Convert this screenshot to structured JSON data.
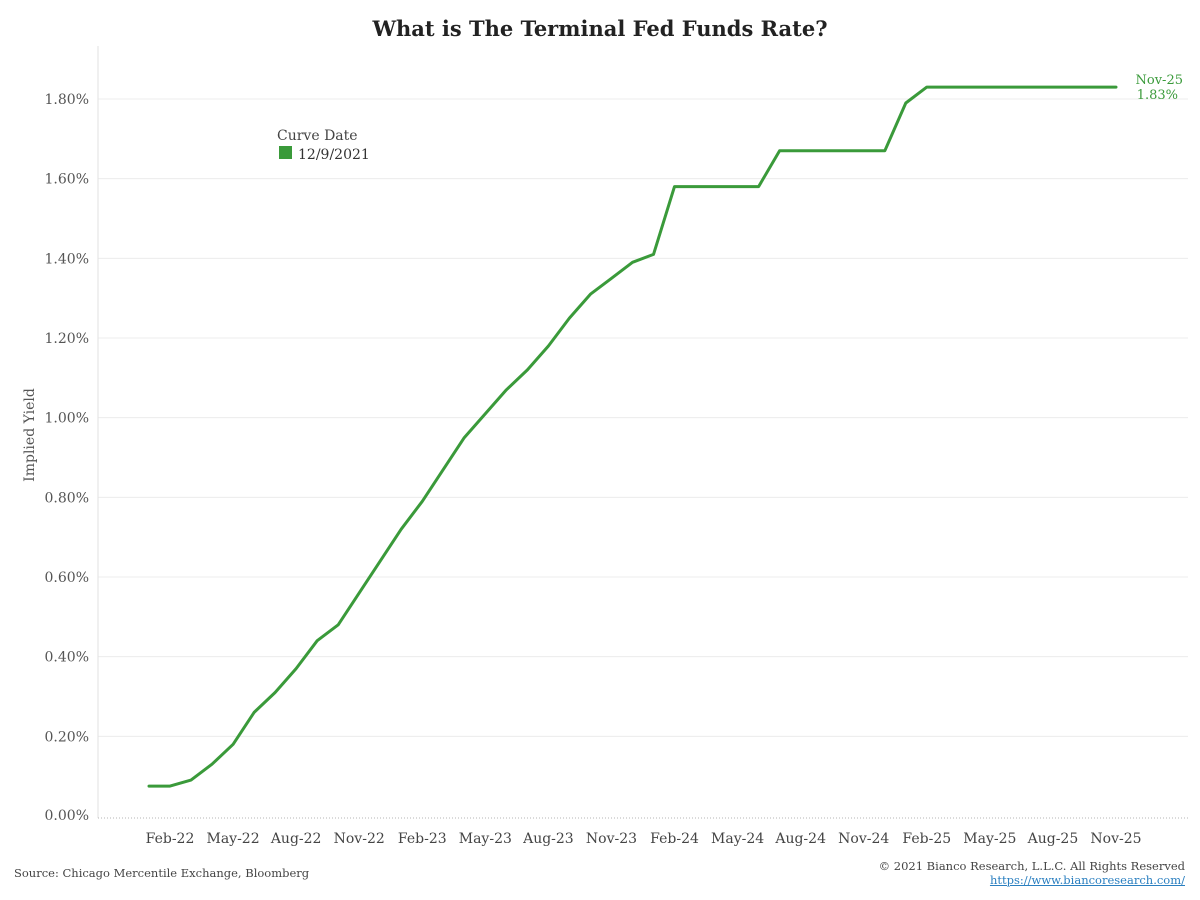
{
  "chart_data": {
    "type": "line",
    "title": "What is The Terminal Fed Funds Rate?",
    "ylabel": "Implied Yield",
    "xlabel": "",
    "ylim": [
      0,
      1.9
    ],
    "y_ticks": [
      0,
      0.2,
      0.4,
      0.6,
      0.8,
      1.0,
      1.2,
      1.4,
      1.6,
      1.8
    ],
    "y_tick_labels": [
      "0.00%",
      "0.20%",
      "0.40%",
      "0.60%",
      "0.80%",
      "1.00%",
      "1.20%",
      "1.40%",
      "1.60%",
      "1.80%"
    ],
    "x_tick_labels": [
      "Feb-22",
      "May-22",
      "Aug-22",
      "Nov-22",
      "Feb-23",
      "May-23",
      "Aug-23",
      "Nov-23",
      "Feb-24",
      "May-24",
      "Aug-24",
      "Nov-24",
      "Feb-25",
      "May-25",
      "Aug-25",
      "Nov-25"
    ],
    "x_range": [
      "Jan-22",
      "Dec-25"
    ],
    "grid": "horizontal",
    "legend": {
      "title": "Curve Date",
      "placement": "top-left"
    },
    "series": [
      {
        "name": "12/9/2021",
        "color": "#3a9a3a",
        "x": [
          "Jan-22",
          "Feb-22",
          "Mar-22",
          "Apr-22",
          "May-22",
          "Jun-22",
          "Jul-22",
          "Aug-22",
          "Sep-22",
          "Oct-22",
          "Nov-22",
          "Dec-22",
          "Jan-23",
          "Feb-23",
          "Mar-23",
          "Apr-23",
          "May-23",
          "Jun-23",
          "Jul-23",
          "Aug-23",
          "Sep-23",
          "Oct-23",
          "Nov-23",
          "Dec-23",
          "Jan-24",
          "Feb-24",
          "Mar-24",
          "Apr-24",
          "May-24",
          "Jun-24",
          "Jul-24",
          "Aug-24",
          "Sep-24",
          "Oct-24",
          "Nov-24",
          "Dec-24",
          "Jan-25",
          "Feb-25",
          "Mar-25",
          "Apr-25",
          "May-25",
          "Jun-25",
          "Jul-25",
          "Aug-25",
          "Sep-25",
          "Oct-25",
          "Nov-25"
        ],
        "y": [
          0.075,
          0.075,
          0.09,
          0.13,
          0.18,
          0.26,
          0.31,
          0.37,
          0.44,
          0.48,
          0.56,
          0.64,
          0.72,
          0.79,
          0.87,
          0.95,
          1.01,
          1.07,
          1.12,
          1.18,
          1.25,
          1.31,
          1.35,
          1.39,
          1.41,
          1.58,
          1.58,
          1.58,
          1.58,
          1.58,
          1.67,
          1.67,
          1.67,
          1.67,
          1.67,
          1.67,
          1.79,
          1.83,
          1.83,
          1.83,
          1.83,
          1.83,
          1.83,
          1.83,
          1.83,
          1.83,
          1.83
        ]
      }
    ],
    "end_label": {
      "date": "Nov-25",
      "value": "1.83%"
    }
  },
  "footer": {
    "source": "Source: Chicago Mercentile Exchange, Bloomberg",
    "copyright": "© 2021 Bianco Research, L.L.C. All Rights Reserved",
    "website": "https://www.biancoresearch.com/"
  }
}
